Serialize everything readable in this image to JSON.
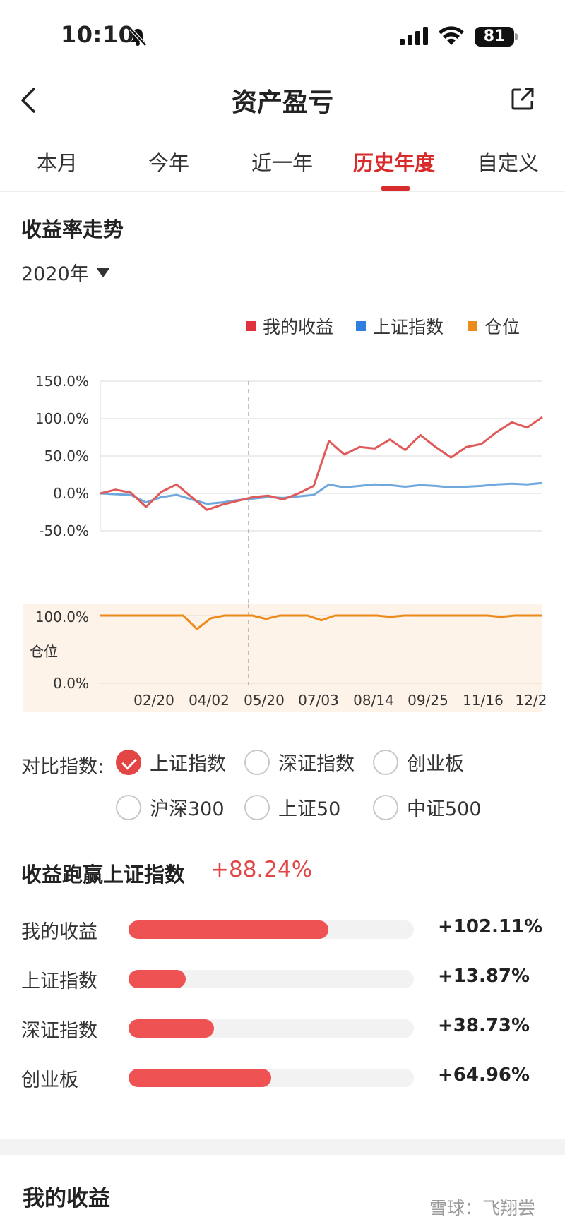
{
  "status_bar": {
    "time": "10:10",
    "battery": "81"
  },
  "nav": {
    "title": "资产盈亏"
  },
  "tabs": [
    {
      "label": "本月",
      "active": false
    },
    {
      "label": "今年",
      "active": false
    },
    {
      "label": "近一年",
      "active": false
    },
    {
      "label": "历史年度",
      "active": true
    },
    {
      "label": "自定义",
      "active": false
    }
  ],
  "trend": {
    "title": "收益率走势",
    "year_label": "2020年"
  },
  "colors": {
    "accent": "#d92b2b",
    "my": "#e05a5a",
    "index": "#5b9bd5",
    "position": "#ec8a1c",
    "bar": "#ee5252"
  },
  "chart_data": [
    {
      "type": "line",
      "legend_position": "top-right",
      "series": [
        {
          "name": "我的收益",
          "color": "#e05a5a",
          "values": [
            0,
            5,
            1,
            -18,
            2,
            12,
            -5,
            -22,
            -15,
            -10,
            -5,
            -3,
            -8,
            0,
            10,
            70,
            52,
            62,
            60,
            72,
            58,
            78,
            62,
            48,
            62,
            66,
            82,
            95,
            88,
            102
          ]
        },
        {
          "name": "上证指数",
          "color": "#5b9bd5",
          "values": [
            0,
            -1,
            -2,
            -12,
            -5,
            -2,
            -8,
            -14,
            -12,
            -9,
            -7,
            -5,
            -6,
            -4,
            -2,
            12,
            8,
            10,
            12,
            11,
            9,
            11,
            10,
            8,
            9,
            10,
            12,
            13,
            12,
            14
          ]
        }
      ],
      "x_ticks": [
        "02/20",
        "04/02",
        "05/20",
        "07/03",
        "08/14",
        "09/25",
        "11/16",
        "12/2"
      ],
      "y_ticks": [
        "150.0%",
        "100.0%",
        "50.0%",
        "0.0%",
        "-50.0%"
      ],
      "ylim": [
        -50,
        150
      ]
    },
    {
      "type": "area",
      "ylabel": "仓位",
      "series": [
        {
          "name": "仓位",
          "color": "#ec8a1c",
          "values": [
            100,
            100,
            100,
            100,
            100,
            100,
            100,
            80,
            96,
            100,
            100,
            100,
            95,
            100,
            100,
            100,
            93,
            100,
            100,
            100,
            100,
            98,
            100,
            100,
            100,
            100,
            100,
            100,
            100,
            98,
            100,
            100,
            100
          ]
        }
      ],
      "y_ticks": [
        "100.0%",
        "0.0%"
      ],
      "ylim": [
        0,
        100
      ]
    }
  ],
  "compare": {
    "label": "对比指数:",
    "options": [
      {
        "label": "上证指数",
        "checked": true
      },
      {
        "label": "深证指数",
        "checked": false
      },
      {
        "label": "创业板",
        "checked": false
      },
      {
        "label": "沪深300",
        "checked": false
      },
      {
        "label": "上证50",
        "checked": false
      },
      {
        "label": "中证500",
        "checked": false
      }
    ]
  },
  "beat": {
    "title": "收益跑赢上证指数",
    "value": "+88.24%",
    "rows": [
      {
        "label": "我的收益",
        "value": "+102.11%",
        "fraction": 0.7
      },
      {
        "label": "上证指数",
        "value": "+13.87%",
        "fraction": 0.2
      },
      {
        "label": "深证指数",
        "value": "+38.73%",
        "fraction": 0.3
      },
      {
        "label": "创业板",
        "value": "+64.96%",
        "fraction": 0.5
      }
    ]
  },
  "my_income": {
    "title": "我的收益"
  },
  "watermark": "雪球：飞翔尝"
}
